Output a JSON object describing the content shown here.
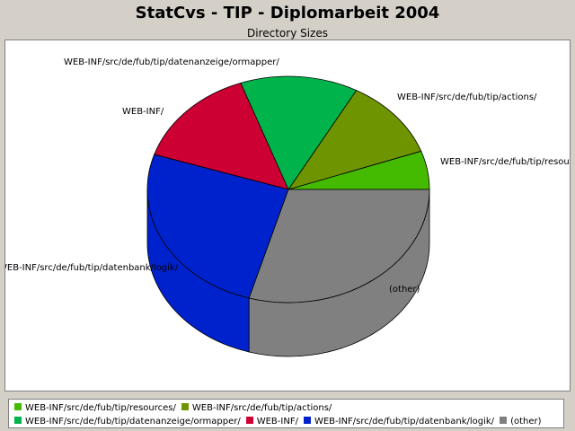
{
  "header": {
    "title": "StatCvs - TIP - Diplomarbeit 2004"
  },
  "chart_data": {
    "type": "pie",
    "subtitle": "Directory Sizes",
    "slices": [
      {
        "label": "WEB-INF/src/de/fub/tip/resources/",
        "value": 5.5,
        "color": "#44bb00"
      },
      {
        "label": "WEB-INF/src/de/fub/tip/actions/",
        "value": 11.5,
        "color": "#6e9400"
      },
      {
        "label": "WEB-INF/src/de/fub/tip/datenanzeige/ormapper/",
        "value": 13.5,
        "color": "#00b34a"
      },
      {
        "label": "WEB-INF/",
        "value": 14.5,
        "color": "#cc0033"
      },
      {
        "label": "WEB-INF/src/de/fub/tip/datenbank/logik/",
        "value": 25.5,
        "color": "#0022cc"
      },
      {
        "label": "(other)",
        "value": 29.5,
        "color": "#808080"
      }
    ],
    "legend_rows": [
      [
        0,
        1
      ],
      [
        2,
        3,
        4,
        5
      ]
    ],
    "legend_position": "bottom",
    "style": "3d"
  }
}
